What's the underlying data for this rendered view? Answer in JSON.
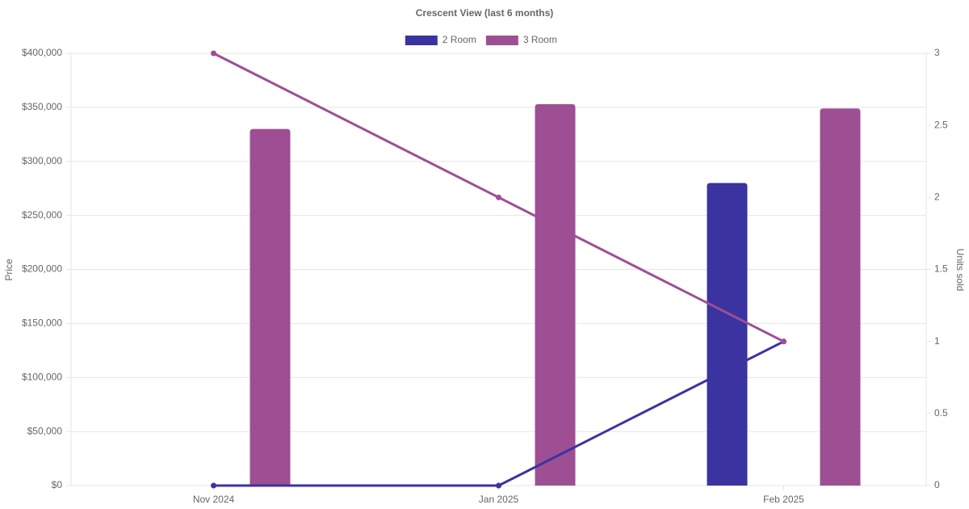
{
  "chart_data": {
    "type": "bar",
    "title": "Crescent View (last 6 months)",
    "categories": [
      "Nov 2024",
      "Jan 2025",
      "Feb 2025"
    ],
    "series": [
      {
        "name": "2 Room",
        "color": "#3a33a0",
        "values": [
          null,
          null,
          280000
        ],
        "units_sold": [
          0,
          0,
          1
        ]
      },
      {
        "name": "3 Room",
        "color": "#9e4f93",
        "values": [
          330000,
          353000,
          349000
        ],
        "units_sold": [
          3,
          2,
          1
        ]
      }
    ],
    "y_label": "Price",
    "y2_label": "Units sold",
    "ylim": [
      0,
      400000
    ],
    "yticks": [
      {
        "value": 0,
        "label": "$0"
      },
      {
        "value": 50000,
        "label": "$50,000"
      },
      {
        "value": 100000,
        "label": "$100,000"
      },
      {
        "value": 150000,
        "label": "$150,000"
      },
      {
        "value": 200000,
        "label": "$200,000"
      },
      {
        "value": 250000,
        "label": "$250,000"
      },
      {
        "value": 300000,
        "label": "$300,000"
      },
      {
        "value": 350000,
        "label": "$350,000"
      },
      {
        "value": 400000,
        "label": "$400,000"
      }
    ],
    "y2lim": [
      0,
      3
    ],
    "y2ticks": [
      0,
      0.5,
      1,
      1.5,
      2,
      2.5,
      3
    ],
    "grid": true,
    "legend": "top"
  }
}
